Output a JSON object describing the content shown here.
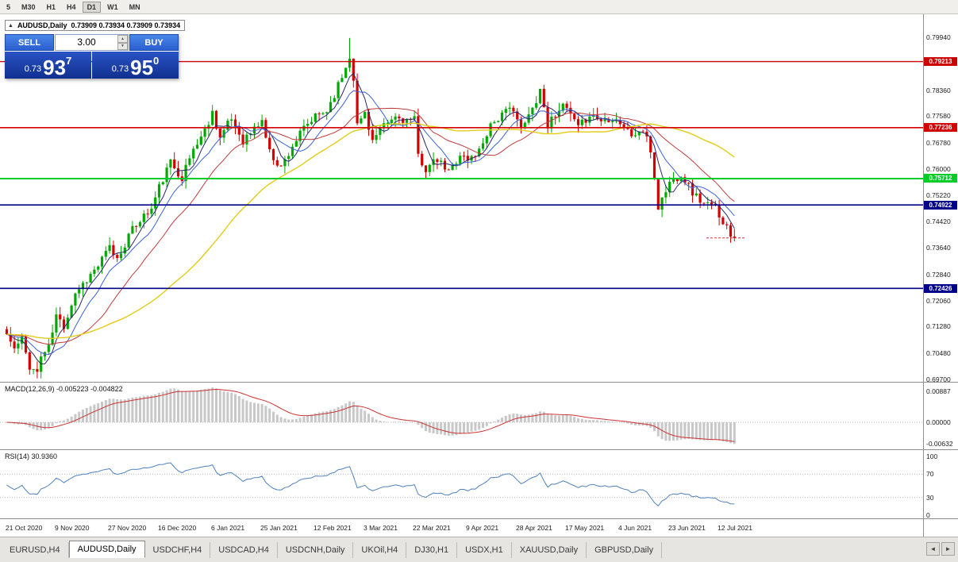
{
  "toolbar": {
    "timeframes": [
      "5",
      "M30",
      "H1",
      "H4",
      "D1",
      "W1",
      "MN"
    ],
    "active": "D1"
  },
  "chart": {
    "header": {
      "collapse_icon": "▲",
      "symbol": "AUDUSD,Daily",
      "ohlc": "0.73909 0.73934 0.73909 0.73934"
    },
    "trade_panel": {
      "sell_label": "SELL",
      "buy_label": "BUY",
      "volume": "3.00",
      "spin_up": "▲",
      "spin_down": "▼",
      "sell_price": {
        "prefix": "0.73",
        "big": "93",
        "sup": "7"
      },
      "buy_price": {
        "prefix": "0.73",
        "big": "95",
        "sup": "0"
      }
    }
  },
  "price_axis": {
    "ticks": [
      "0.79940",
      "0.79210",
      "0.78360",
      "0.77580",
      "0.76780",
      "0.76000",
      "0.75220",
      "0.74420",
      "0.73640",
      "0.72840",
      "0.72060",
      "0.71280",
      "0.70480",
      "0.69700"
    ],
    "level_boxes": [
      {
        "label": "0.79213",
        "price": 0.79213,
        "color": "#cc0000",
        "thickness": 1.4
      },
      {
        "label": "0.77236",
        "price": 0.77236,
        "color": "#d40000",
        "thickness": 1.6
      },
      {
        "label": "0.75712",
        "price": 0.75712,
        "color": "#00cc2a",
        "thickness": 2
      },
      {
        "label": "0.74922",
        "price": 0.74922,
        "color": "#000089",
        "thickness": 1.6
      },
      {
        "label": "0.72426",
        "price": 0.72426,
        "color": "#000089",
        "thickness": 1.6
      }
    ]
  },
  "time_axis": {
    "labels": [
      "21 Oct 2020",
      "9 Nov 2020",
      "27 Nov 2020",
      "16 Dec 2020",
      "6 Jan 2021",
      "25 Jan 2021",
      "12 Feb 2021",
      "3 Mar 2021",
      "22 Mar 2021",
      "9 Apr 2021",
      "28 Apr 2021",
      "17 May 2021",
      "4 Jun 2021",
      "23 Jun 2021",
      "12 Jul 2021"
    ],
    "indices": [
      0,
      13,
      27,
      40,
      54,
      67,
      81,
      94,
      107,
      121,
      134,
      147,
      161,
      174,
      187
    ]
  },
  "macd_panel": {
    "label": "MACD(12,26,9) -0.005223 -0.004822",
    "ticks": [
      {
        "label": "0.00887",
        "value": 0.00887
      },
      {
        "label": "0.00000",
        "value": 0
      },
      {
        "label": "-0.00632",
        "value": -0.00632
      }
    ]
  },
  "rsi_panel": {
    "label": "RSI(14) 30.9360",
    "ticks": [
      {
        "label": "100",
        "value": 100
      },
      {
        "label": "70",
        "value": 70
      },
      {
        "label": "30",
        "value": 30
      },
      {
        "label": "0",
        "value": 0
      }
    ],
    "levels": [
      70,
      30
    ]
  },
  "tabs": {
    "items": [
      "EURUSD,H4",
      "AUDUSD,Daily",
      "USDCHF,H4",
      "USDCAD,H4",
      "USDCNH,Daily",
      "UKOil,H4",
      "DJ30,H1",
      "USDX,H1",
      "XAUUSD,Daily",
      "GBPUSD,Daily"
    ],
    "active": "AUDUSD,Daily",
    "scroll_left": "◄",
    "scroll_right": "►"
  },
  "chart_data": {
    "type": "candlestick",
    "symbol": "AUDUSD",
    "timeframe": "Daily",
    "last_ohlc": {
      "open": 0.73909,
      "high": 0.73934,
      "low": 0.73909,
      "close": 0.73934
    },
    "bid": 0.73937,
    "ask": 0.7395,
    "price_range": {
      "top_tick": 0.7994,
      "bottom_tick": 0.697
    },
    "horizontal_lines": [
      0.79213,
      0.77236,
      0.75712,
      0.74922,
      0.72426
    ],
    "x_range": [
      "21 Oct 2020",
      "16 Jul 2021"
    ],
    "candle_count": 192,
    "seed": 11,
    "price_path_anchors": [
      [
        0,
        0.7105
      ],
      [
        2,
        0.706
      ],
      [
        4,
        0.709
      ],
      [
        6,
        0.701
      ],
      [
        8,
        0.699
      ],
      [
        9,
        0.704
      ],
      [
        11,
        0.7065
      ],
      [
        13,
        0.716
      ],
      [
        15,
        0.713
      ],
      [
        18,
        0.723
      ],
      [
        21,
        0.727
      ],
      [
        24,
        0.731
      ],
      [
        27,
        0.7365
      ],
      [
        29,
        0.733
      ],
      [
        32,
        0.74
      ],
      [
        35,
        0.745
      ],
      [
        38,
        0.748
      ],
      [
        40,
        0.7545
      ],
      [
        43,
        0.762
      ],
      [
        46,
        0.7575
      ],
      [
        49,
        0.766
      ],
      [
        52,
        0.7715
      ],
      [
        54,
        0.777
      ],
      [
        56,
        0.7695
      ],
      [
        59,
        0.775
      ],
      [
        62,
        0.7685
      ],
      [
        65,
        0.772
      ],
      [
        67,
        0.7745
      ],
      [
        69,
        0.765
      ],
      [
        72,
        0.7605
      ],
      [
        75,
        0.767
      ],
      [
        78,
        0.772
      ],
      [
        81,
        0.7755
      ],
      [
        84,
        0.7775
      ],
      [
        87,
        0.785
      ],
      [
        89,
        0.7905
      ],
      [
        90,
        0.794
      ],
      [
        91,
        0.7875
      ],
      [
        92,
        0.773
      ],
      [
        94,
        0.777
      ],
      [
        96,
        0.7685
      ],
      [
        99,
        0.7725
      ],
      [
        102,
        0.7755
      ],
      [
        105,
        0.7745
      ],
      [
        107,
        0.7745
      ],
      [
        108,
        0.764
      ],
      [
        110,
        0.76
      ],
      [
        113,
        0.7625
      ],
      [
        116,
        0.759
      ],
      [
        119,
        0.7645
      ],
      [
        121,
        0.7625
      ],
      [
        124,
        0.7655
      ],
      [
        127,
        0.7735
      ],
      [
        130,
        0.776
      ],
      [
        133,
        0.7785
      ],
      [
        135,
        0.7715
      ],
      [
        138,
        0.778
      ],
      [
        140,
        0.784
      ],
      [
        142,
        0.773
      ],
      [
        145,
        0.7785
      ],
      [
        147,
        0.778
      ],
      [
        150,
        0.772
      ],
      [
        153,
        0.7765
      ],
      [
        156,
        0.7745
      ],
      [
        159,
        0.7755
      ],
      [
        161,
        0.774
      ],
      [
        164,
        0.77
      ],
      [
        167,
        0.7715
      ],
      [
        169,
        0.7655
      ],
      [
        171,
        0.7485
      ],
      [
        174,
        0.756
      ],
      [
        177,
        0.7585
      ],
      [
        180,
        0.753
      ],
      [
        183,
        0.7495
      ],
      [
        186,
        0.7485
      ],
      [
        188,
        0.7445
      ],
      [
        190,
        0.7405
      ],
      [
        191,
        0.73934
      ]
    ],
    "moving_averages": [
      {
        "period": 5,
        "color": "#26276b",
        "width": 1
      },
      {
        "period": 10,
        "color": "#3a62d8",
        "width": 1
      },
      {
        "period": 21,
        "color": "#c03a3a",
        "width": 1
      },
      {
        "period": 50,
        "color": "#e3cc18",
        "width": 1.4
      }
    ],
    "macd": {
      "fast": 12,
      "slow": 26,
      "signal": 9,
      "current_macd": "-0.005223",
      "current_signal": "-0.004822"
    },
    "rsi": {
      "period": 14,
      "current": 30.936
    },
    "colors": {
      "bull": "#00a800",
      "bear": "#d40000",
      "macd_hist": "#c8c8c8",
      "macd_signal": "#cc3333",
      "rsi_line": "#4f81bd",
      "bid_line": "#e03030"
    }
  }
}
